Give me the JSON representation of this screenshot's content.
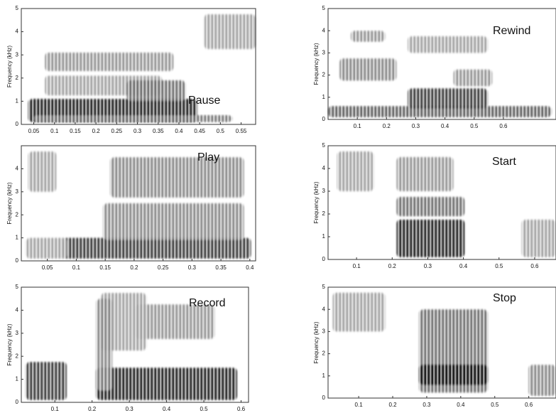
{
  "chart_data": [
    {
      "type": "spectrogram",
      "annotation": "Pause",
      "ylabel": "Frequency (kHz)",
      "xlim": [
        0.02,
        0.585
      ],
      "ylim": [
        0,
        5
      ],
      "xticks": [
        0.05,
        0.1,
        0.15,
        0.2,
        0.25,
        0.3,
        0.35,
        0.4,
        0.45,
        0.5,
        0.55
      ],
      "yticks": [
        0,
        1,
        2,
        3,
        4,
        5
      ]
    },
    {
      "type": "spectrogram",
      "annotation": "Rewind",
      "ylabel": "Frequency (kHz)",
      "xlim": [
        0,
        0.78
      ],
      "ylim": [
        0,
        5
      ],
      "xticks": [
        0.1,
        0.2,
        0.3,
        0.4,
        0.5,
        0.6
      ],
      "yticks": [
        0,
        1,
        2,
        3,
        4,
        5
      ]
    },
    {
      "type": "spectrogram",
      "annotation": "Play",
      "ylabel": "Frequency (kHz)",
      "xlim": [
        0.005,
        0.41
      ],
      "ylim": [
        0,
        5
      ],
      "xticks": [
        0.05,
        0.1,
        0.15,
        0.2,
        0.25,
        0.3,
        0.35,
        0.4
      ],
      "yticks": [
        0,
        1,
        2,
        3,
        4
      ]
    },
    {
      "type": "spectrogram",
      "annotation": "Start",
      "ylabel": "Frequency (kHz)",
      "xlim": [
        0.02,
        0.66
      ],
      "ylim": [
        0,
        5
      ],
      "xticks": [
        0.1,
        0.2,
        0.3,
        0.4,
        0.5,
        0.6
      ],
      "yticks": [
        0,
        1,
        2,
        3,
        4,
        5
      ]
    },
    {
      "type": "spectrogram",
      "annotation": "Record",
      "ylabel": "Frequency (kHz)",
      "xlim": [
        0.01,
        0.62
      ],
      "ylim": [
        0,
        5
      ],
      "xticks": [
        0.1,
        0.2,
        0.3,
        0.4,
        0.5,
        0.6
      ],
      "yticks": [
        0,
        1,
        2,
        3,
        4,
        5
      ]
    },
    {
      "type": "spectrogram",
      "annotation": "Stop",
      "ylabel": "Frequency (kHz)",
      "xlim": [
        0.01,
        0.68
      ],
      "ylim": [
        0,
        5
      ],
      "xticks": [
        0.1,
        0.2,
        0.3,
        0.4,
        0.5,
        0.6
      ],
      "yticks": [
        0,
        1,
        2,
        3,
        4,
        5
      ]
    }
  ]
}
